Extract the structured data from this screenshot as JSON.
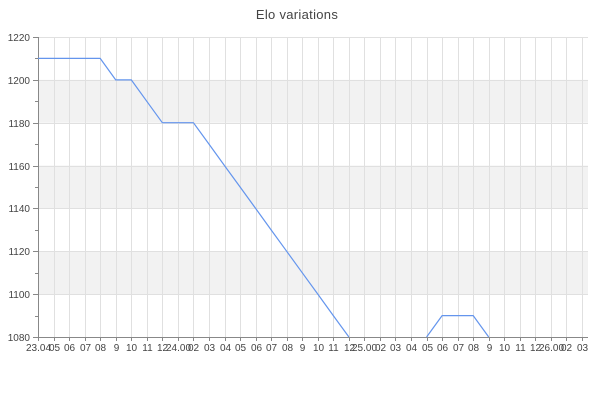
{
  "chart_data": {
    "type": "line",
    "title": "Elo variations",
    "xlabel": "",
    "ylabel": "",
    "x_tick_labels": [
      "23.04",
      "05",
      "06",
      "07",
      "08",
      "9",
      "10",
      "11",
      "12",
      "24.00",
      "02",
      "03",
      "04",
      "05",
      "06",
      "07",
      "08",
      "9",
      "10",
      "11",
      "12",
      "25.00",
      "02",
      "03",
      "04",
      "05",
      "06",
      "07",
      "08",
      "9",
      "10",
      "11",
      "12",
      "26.00",
      "02",
      "03"
    ],
    "series": [
      {
        "name": "Elo",
        "values": [
          1210,
          1210,
          1210,
          1210,
          1210,
          1200,
          1200,
          1190,
          1180,
          1180,
          1180,
          1170,
          1160,
          1150,
          1140,
          1130,
          1120,
          1110,
          1100,
          1090,
          1080,
          null,
          null,
          null,
          null,
          1080,
          1090,
          1090,
          1090,
          1080,
          null,
          null,
          null,
          null,
          null,
          null
        ]
      }
    ],
    "ylim": [
      1080,
      1220
    ],
    "y_major_ticks": [
      1080,
      1100,
      1120,
      1140,
      1160,
      1180,
      1200,
      1220
    ],
    "y_minor_step": 10,
    "grid": true,
    "legend": "none",
    "shaded_bands": [
      [
        1180,
        1200
      ],
      [
        1140,
        1160
      ],
      [
        1100,
        1120
      ]
    ],
    "colors": {
      "line": "#6495ed",
      "band": "#f2f2f2",
      "grid": "#e0e0e0",
      "axis": "#888888",
      "text": "#444444"
    }
  }
}
